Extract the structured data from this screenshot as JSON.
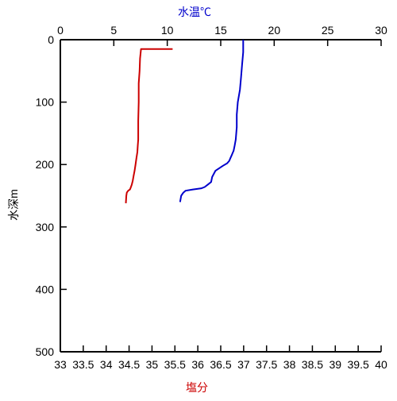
{
  "chart_data": {
    "type": "line",
    "top_axis_label": "水温℃",
    "top_axis_label_color": "#0000cc",
    "bottom_axis_label": "塩分",
    "bottom_axis_label_color": "#cc0000",
    "y_axis_label": "水深m",
    "y_inverted": true,
    "ylim": [
      0,
      500
    ],
    "y_ticks": [
      "0",
      "100",
      "200",
      "300",
      "400",
      "500"
    ],
    "y_tick_values": [
      0,
      100,
      200,
      300,
      400,
      500
    ],
    "top_xlim": [
      0,
      30
    ],
    "top_ticks": [
      "0",
      "5",
      "10",
      "15",
      "20",
      "25",
      "30"
    ],
    "top_tick_values": [
      0,
      5,
      10,
      15,
      20,
      25,
      30
    ],
    "bottom_xlim": [
      33,
      40
    ],
    "bottom_ticks": [
      "33",
      "33.5",
      "34",
      "34.5",
      "35",
      "35.5",
      "36",
      "36.5",
      "37",
      "37.5",
      "38",
      "38.5",
      "39",
      "39.5",
      "40"
    ],
    "bottom_tick_values": [
      33,
      33.5,
      34,
      34.5,
      35,
      35.5,
      36,
      36.5,
      37,
      37.5,
      38,
      38.5,
      39,
      39.5,
      40
    ],
    "grid": false,
    "series": [
      {
        "axis": "top",
        "color": "#0000cc",
        "x": [
          17.1,
          17.1,
          17.0,
          16.9,
          16.8,
          16.6,
          16.5,
          16.5,
          16.4,
          16.3,
          16.2,
          16.1,
          16.0,
          15.9,
          15.8,
          15.6,
          15.2,
          14.5,
          14.2,
          14.1,
          13.8,
          13.5,
          13.2,
          12.4,
          11.7,
          11.5,
          11.3,
          11.2
        ],
        "y": [
          0,
          20,
          40,
          60,
          80,
          100,
          120,
          140,
          160,
          170,
          178,
          182,
          186,
          190,
          194,
          198,
          202,
          210,
          220,
          228,
          232,
          236,
          238,
          240,
          242,
          245,
          250,
          260
        ]
      },
      {
        "axis": "bottom",
        "color": "#cc0000",
        "x": [
          35.45,
          34.76,
          34.74,
          34.73,
          34.71,
          34.71,
          34.7,
          34.7,
          34.69,
          34.68,
          34.66,
          34.64,
          34.62,
          34.6,
          34.58,
          34.56,
          34.54,
          34.52,
          34.48,
          34.45,
          34.44,
          34.43
        ],
        "y": [
          15,
          15,
          30,
          50,
          70,
          100,
          130,
          160,
          170,
          180,
          190,
          200,
          210,
          218,
          226,
          232,
          236,
          240,
          242,
          245,
          250,
          262
        ]
      }
    ]
  }
}
